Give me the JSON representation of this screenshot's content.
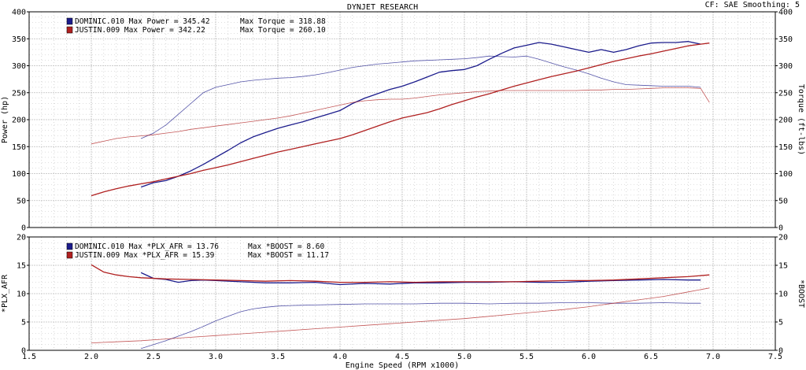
{
  "header": {
    "title": "DYNJET RESEARCH",
    "right_info": "CF: SAE   Smoothing: 5"
  },
  "colors": {
    "dominic": "#1c1c8c",
    "justin": "#b02020",
    "grid": "#bdbdbd",
    "plot_bg": "#ffffff"
  },
  "chart_data": [
    {
      "type": "line",
      "name": "power-torque",
      "xlim": [
        1.5,
        7.5
      ],
      "ylim": [
        0,
        400
      ],
      "ylabel": "Power (hp)",
      "ylabel_right": "Torque (ft-lbs)",
      "y_ticks": [
        0,
        50,
        100,
        150,
        200,
        250,
        300,
        350,
        400
      ],
      "y_ticks_right": [
        0,
        50,
        100,
        150,
        200,
        250,
        300,
        350,
        400
      ],
      "grid": true,
      "legend": [
        {
          "color_key": "dominic",
          "text": "DOMINIC.010 Max Power = 345.42",
          "text2": "Max Torque = 318.88"
        },
        {
          "color_key": "justin",
          "text": "JUSTIN.009 Max Power = 342.22",
          "text2": "Max Torque = 260.10"
        }
      ],
      "series": [
        {
          "key": "dominic_power",
          "name": "DOMINIC.010 Power",
          "color_key": "dominic",
          "axis": "left",
          "bold": true,
          "x": [
            2.4,
            2.5,
            2.6,
            2.7,
            2.8,
            2.9,
            3.0,
            3.1,
            3.2,
            3.3,
            3.4,
            3.5,
            3.6,
            3.7,
            3.8,
            3.9,
            4.0,
            4.1,
            4.2,
            4.3,
            4.4,
            4.5,
            4.6,
            4.7,
            4.8,
            4.9,
            5.0,
            5.1,
            5.2,
            5.3,
            5.4,
            5.5,
            5.6,
            5.7,
            5.8,
            5.9,
            6.0,
            6.1,
            6.2,
            6.3,
            6.4,
            6.5,
            6.6,
            6.7,
            6.8,
            6.9
          ],
          "y": [
            75,
            83,
            87,
            95,
            105,
            117,
            130,
            143,
            157,
            168,
            176,
            184,
            190,
            196,
            203,
            210,
            217,
            230,
            240,
            248,
            256,
            262,
            270,
            279,
            288,
            291,
            293,
            300,
            312,
            323,
            333,
            338,
            343,
            340,
            335,
            330,
            325,
            330,
            325,
            330,
            337,
            342,
            343,
            343,
            345,
            340
          ]
        },
        {
          "key": "dominic_torque",
          "name": "DOMINIC.010 Torque",
          "color_key": "dominic",
          "axis": "right",
          "bold": false,
          "x": [
            2.4,
            2.5,
            2.6,
            2.7,
            2.8,
            2.9,
            3.0,
            3.1,
            3.2,
            3.3,
            3.4,
            3.5,
            3.6,
            3.7,
            3.8,
            3.9,
            4.0,
            4.1,
            4.2,
            4.3,
            4.4,
            4.5,
            4.6,
            4.7,
            4.8,
            4.9,
            5.0,
            5.1,
            5.2,
            5.3,
            5.4,
            5.5,
            5.6,
            5.7,
            5.8,
            5.9,
            6.0,
            6.1,
            6.2,
            6.3,
            6.4,
            6.5,
            6.6,
            6.7,
            6.8,
            6.9
          ],
          "y": [
            165,
            175,
            190,
            210,
            230,
            250,
            260,
            265,
            270,
            273,
            275,
            277,
            278,
            280,
            283,
            287,
            292,
            297,
            300,
            303,
            305,
            307,
            309,
            310,
            311,
            312,
            313,
            315,
            318,
            317,
            316,
            318,
            312,
            305,
            298,
            292,
            285,
            277,
            270,
            265,
            264,
            263,
            262,
            262,
            262,
            260
          ]
        },
        {
          "key": "justin_power",
          "name": "JUSTIN.009 Power",
          "color_key": "justin",
          "axis": "left",
          "bold": true,
          "x": [
            2.0,
            2.1,
            2.2,
            2.3,
            2.4,
            2.5,
            2.6,
            2.7,
            2.8,
            2.9,
            3.0,
            3.1,
            3.2,
            3.3,
            3.4,
            3.5,
            3.6,
            3.7,
            3.8,
            3.9,
            4.0,
            4.1,
            4.2,
            4.3,
            4.4,
            4.5,
            4.6,
            4.7,
            4.8,
            4.9,
            5.0,
            5.1,
            5.2,
            5.3,
            5.4,
            5.5,
            5.6,
            5.7,
            5.8,
            5.9,
            6.0,
            6.1,
            6.2,
            6.3,
            6.4,
            6.5,
            6.6,
            6.7,
            6.8,
            6.9,
            6.97
          ],
          "y": [
            59,
            66,
            72,
            77,
            81,
            85,
            90,
            95,
            100,
            106,
            111,
            116,
            122,
            128,
            134,
            140,
            145,
            150,
            155,
            160,
            165,
            172,
            180,
            188,
            196,
            203,
            208,
            213,
            220,
            228,
            235,
            242,
            248,
            255,
            262,
            268,
            274,
            280,
            285,
            290,
            296,
            302,
            308,
            313,
            318,
            322,
            327,
            332,
            337,
            340,
            342
          ]
        },
        {
          "key": "justin_torque",
          "name": "JUSTIN.009 Torque",
          "color_key": "justin",
          "axis": "right",
          "bold": false,
          "x": [
            2.0,
            2.1,
            2.2,
            2.3,
            2.4,
            2.5,
            2.6,
            2.7,
            2.8,
            2.9,
            3.0,
            3.1,
            3.2,
            3.3,
            3.4,
            3.5,
            3.6,
            3.7,
            3.8,
            3.9,
            4.0,
            4.1,
            4.2,
            4.3,
            4.4,
            4.5,
            4.6,
            4.7,
            4.8,
            4.9,
            5.0,
            5.1,
            5.2,
            5.3,
            5.4,
            5.5,
            5.6,
            5.7,
            5.8,
            5.9,
            6.0,
            6.1,
            6.2,
            6.3,
            6.4,
            6.5,
            6.6,
            6.7,
            6.8,
            6.9,
            6.97
          ],
          "y": [
            155,
            160,
            165,
            168,
            170,
            172,
            175,
            178,
            182,
            185,
            188,
            191,
            194,
            197,
            200,
            203,
            207,
            212,
            217,
            222,
            227,
            232,
            235,
            237,
            238,
            238,
            240,
            243,
            246,
            248,
            250,
            252,
            253,
            254,
            254,
            254,
            254,
            254,
            254,
            254,
            255,
            255,
            256,
            256,
            257,
            258,
            259,
            259,
            259,
            258,
            232
          ]
        }
      ]
    },
    {
      "type": "line",
      "name": "afr-boost",
      "xlim": [
        1.5,
        7.5
      ],
      "ylim": [
        0,
        20
      ],
      "xlabel": "Engine Speed (RPM x1000)",
      "ylabel": "*PLX_AFR",
      "ylabel_right": "*BOOST",
      "x_ticks": [
        1.5,
        2.0,
        2.5,
        3.0,
        3.5,
        4.0,
        4.5,
        5.0,
        5.5,
        6.0,
        6.5,
        7.0,
        7.5
      ],
      "x_tick_labels": [
        "1.5",
        "2.0",
        "2.5",
        "3.0",
        "3.5",
        "4.0",
        "4.5",
        "5.0",
        "5.5",
        "6.0",
        "6.5",
        "7.0",
        "7.5"
      ],
      "y_ticks": [
        0,
        5,
        10,
        15,
        20
      ],
      "y_ticks_right": [
        0,
        5,
        10,
        15,
        20
      ],
      "grid": true,
      "legend": [
        {
          "color_key": "dominic",
          "text": "DOMINIC.010 Max *PLX_AFR = 13.76",
          "text2": "Max *BOOST = 8.60"
        },
        {
          "color_key": "justin",
          "text": "JUSTIN.009 Max *PLX_AFR = 15.39",
          "text2": "Max *BOOST = 11.17"
        }
      ],
      "series": [
        {
          "key": "dominic_afr",
          "name": "DOMINIC.010 *PLX_AFR",
          "color_key": "dominic",
          "axis": "left",
          "bold": true,
          "x": [
            2.4,
            2.5,
            2.6,
            2.7,
            2.8,
            2.9,
            3.0,
            3.2,
            3.4,
            3.6,
            3.8,
            4.0,
            4.2,
            4.4,
            4.6,
            4.8,
            5.0,
            5.2,
            5.4,
            5.6,
            5.8,
            6.0,
            6.2,
            6.4,
            6.6,
            6.8,
            6.9
          ],
          "y": [
            13.7,
            12.7,
            12.5,
            12.0,
            12.3,
            12.4,
            12.3,
            12.1,
            11.9,
            11.9,
            12.0,
            11.6,
            11.8,
            11.7,
            11.9,
            11.9,
            12.0,
            12.0,
            12.1,
            12.0,
            12.0,
            12.2,
            12.3,
            12.4,
            12.5,
            12.4,
            12.4
          ]
        },
        {
          "key": "dominic_boost",
          "name": "DOMINIC.010 *BOOST",
          "color_key": "dominic",
          "axis": "right",
          "bold": false,
          "x": [
            2.4,
            2.5,
            2.6,
            2.7,
            2.8,
            2.9,
            3.0,
            3.1,
            3.2,
            3.3,
            3.4,
            3.5,
            3.6,
            3.8,
            4.0,
            4.2,
            4.4,
            4.6,
            4.8,
            5.0,
            5.2,
            5.4,
            5.6,
            5.8,
            6.0,
            6.2,
            6.4,
            6.6,
            6.8,
            6.9
          ],
          "y": [
            0.3,
            1.0,
            1.7,
            2.5,
            3.3,
            4.2,
            5.2,
            6.0,
            6.8,
            7.3,
            7.6,
            7.8,
            7.9,
            8.0,
            8.1,
            8.2,
            8.2,
            8.2,
            8.3,
            8.3,
            8.2,
            8.3,
            8.3,
            8.4,
            8.4,
            8.3,
            8.3,
            8.4,
            8.3,
            8.3
          ]
        },
        {
          "key": "justin_afr",
          "name": "JUSTIN.009 *PLX_AFR",
          "color_key": "justin",
          "axis": "left",
          "bold": true,
          "x": [
            2.0,
            2.1,
            2.2,
            2.3,
            2.4,
            2.6,
            2.8,
            3.0,
            3.2,
            3.4,
            3.6,
            3.8,
            4.0,
            4.2,
            4.4,
            4.6,
            4.8,
            5.0,
            5.2,
            5.4,
            5.6,
            5.8,
            6.0,
            6.2,
            6.4,
            6.6,
            6.8,
            6.97
          ],
          "y": [
            15.1,
            13.8,
            13.3,
            13.0,
            12.8,
            12.6,
            12.5,
            12.4,
            12.3,
            12.2,
            12.3,
            12.2,
            12.0,
            12.0,
            12.1,
            12.0,
            12.1,
            12.1,
            12.1,
            12.1,
            12.2,
            12.3,
            12.3,
            12.4,
            12.6,
            12.8,
            13.0,
            13.3
          ]
        },
        {
          "key": "justin_boost",
          "name": "JUSTIN.009 *BOOST",
          "color_key": "justin",
          "axis": "right",
          "bold": false,
          "x": [
            2.0,
            2.2,
            2.4,
            2.6,
            2.8,
            3.0,
            3.2,
            3.4,
            3.6,
            3.8,
            4.0,
            4.2,
            4.4,
            4.6,
            4.8,
            5.0,
            5.2,
            5.4,
            5.6,
            5.8,
            6.0,
            6.2,
            6.4,
            6.6,
            6.8,
            6.97
          ],
          "y": [
            1.3,
            1.5,
            1.7,
            2.0,
            2.3,
            2.6,
            2.9,
            3.2,
            3.5,
            3.8,
            4.1,
            4.4,
            4.7,
            5.0,
            5.3,
            5.6,
            6.0,
            6.4,
            6.8,
            7.2,
            7.7,
            8.3,
            8.9,
            9.5,
            10.3,
            11.0
          ]
        }
      ]
    }
  ]
}
